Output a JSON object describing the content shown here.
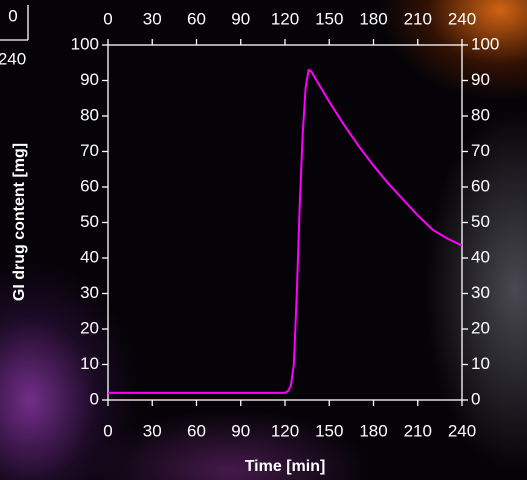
{
  "left_fragment": {
    "texts": [
      "0",
      "240"
    ]
  },
  "chart_data": {
    "type": "line",
    "x_label": "Time [min]",
    "y_label": "GI drug content [mg]",
    "x": [
      0,
      20,
      40,
      60,
      80,
      100,
      120,
      122,
      124,
      126,
      128,
      130,
      132,
      134,
      136,
      138,
      140,
      150,
      160,
      170,
      180,
      190,
      200,
      210,
      220,
      230,
      240
    ],
    "series": [
      {
        "color": "#ff00ff",
        "values": [
          2,
          2,
          2,
          2,
          2,
          2,
          2,
          2.5,
          4,
          10,
          30,
          55,
          75,
          88,
          93,
          92.5,
          91,
          84,
          77.5,
          71.5,
          66,
          61,
          56.5,
          52,
          48,
          45.5,
          43.5
        ]
      }
    ],
    "xlim": [
      0,
      240
    ],
    "xticks": [
      0,
      30,
      60,
      90,
      120,
      150,
      180,
      210,
      240
    ],
    "ylim": [
      0,
      100
    ],
    "yticks": [
      0,
      10,
      20,
      30,
      40,
      50,
      60,
      70,
      80,
      90,
      100
    ],
    "mirror_axes": true
  }
}
